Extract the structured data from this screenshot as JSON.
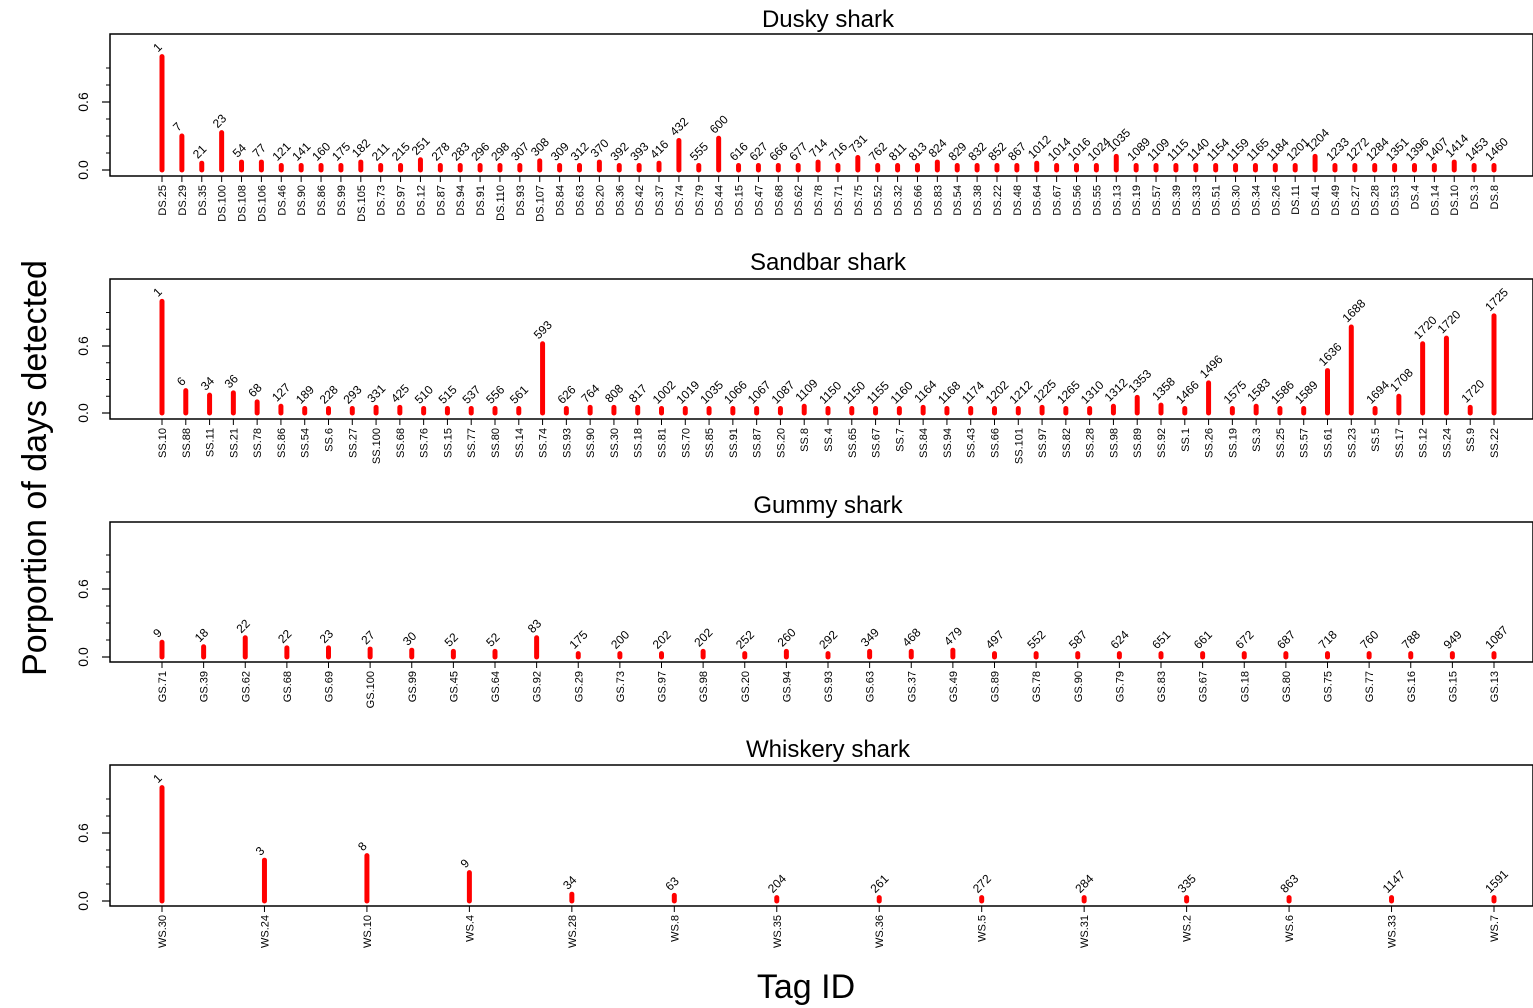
{
  "figure": {
    "ylabel": "Porportion of days detected",
    "xlabel": "Tag ID"
  },
  "chart_data": [
    {
      "type": "bar",
      "title": "Dusky shark",
      "xlabel": "",
      "ylabel": "",
      "ylim": [
        0,
        1
      ],
      "yticks": [
        0.0,
        0.6
      ],
      "ytick_labels": [
        "0.0",
        "0.6"
      ],
      "bar_color": "#ff0000",
      "categories": [
        "DS.25",
        "DS.29",
        "DS.35",
        "DS.100",
        "DS.108",
        "DS.106",
        "DS.46",
        "DS.90",
        "DS.86",
        "DS.99",
        "DS.105",
        "DS.73",
        "DS.97",
        "DS.12",
        "DS.87",
        "DS.94",
        "DS.91",
        "DS.110",
        "DS.93",
        "DS.107",
        "DS.84",
        "DS.63",
        "DS.20",
        "DS.36",
        "DS.42",
        "DS.37",
        "DS.74",
        "DS.79",
        "DS.44",
        "DS.15",
        "DS.47",
        "DS.68",
        "DS.62",
        "DS.78",
        "DS.71",
        "DS.75",
        "DS.52",
        "DS.32",
        "DS.66",
        "DS.83",
        "DS.54",
        "DS.38",
        "DS.22",
        "DS.48",
        "DS.64",
        "DS.67",
        "DS.56",
        "DS.55",
        "DS.13",
        "DS.19",
        "DS.57",
        "DS.39",
        "DS.33",
        "DS.51",
        "DS.30",
        "DS.34",
        "DS.26",
        "DS.11",
        "DS.41",
        "DS.49",
        "DS.27",
        "DS.28",
        "DS.53",
        "DS.4",
        "DS.14",
        "DS.10",
        "DS.3",
        "DS.8"
      ],
      "values": [
        1.0,
        0.3,
        0.06,
        0.33,
        0.07,
        0.07,
        0.04,
        0.04,
        0.04,
        0.04,
        0.07,
        0.04,
        0.04,
        0.09,
        0.04,
        0.04,
        0.04,
        0.04,
        0.04,
        0.08,
        0.04,
        0.04,
        0.07,
        0.04,
        0.04,
        0.06,
        0.26,
        0.04,
        0.28,
        0.04,
        0.04,
        0.04,
        0.04,
        0.07,
        0.04,
        0.11,
        0.04,
        0.04,
        0.04,
        0.07,
        0.04,
        0.04,
        0.04,
        0.04,
        0.06,
        0.04,
        0.04,
        0.04,
        0.12,
        0.04,
        0.04,
        0.04,
        0.04,
        0.04,
        0.04,
        0.04,
        0.04,
        0.04,
        0.12,
        0.04,
        0.04,
        0.04,
        0.04,
        0.04,
        0.04,
        0.07,
        0.04,
        0.04
      ],
      "value_labels": [
        "1",
        "7",
        "21",
        "23",
        "54",
        "77",
        "121",
        "141",
        "160",
        "175",
        "182",
        "211",
        "215",
        "251",
        "278",
        "283",
        "296",
        "298",
        "307",
        "308",
        "309",
        "312",
        "370",
        "392",
        "393",
        "416",
        "432",
        "555",
        "600",
        "616",
        "627",
        "666",
        "677",
        "714",
        "716",
        "731",
        "762",
        "811",
        "813",
        "824",
        "829",
        "832",
        "852",
        "867",
        "1012",
        "1014",
        "1016",
        "1024",
        "1035",
        "1089",
        "1109",
        "1115",
        "1140",
        "1154",
        "1159",
        "1165",
        "1184",
        "1201",
        "1204",
        "1233",
        "1272",
        "1284",
        "1351",
        "1396",
        "1407",
        "1414",
        "1453",
        "1460"
      ]
    },
    {
      "type": "bar",
      "title": "Sandbar shark",
      "xlabel": "",
      "ylabel": "",
      "ylim": [
        0,
        1
      ],
      "yticks": [
        0.0,
        0.6
      ],
      "ytick_labels": [
        "0.0",
        "0.6"
      ],
      "bar_color": "#ff0000",
      "categories": [
        "SS.10",
        "SS.88",
        "SS.11",
        "SS.21",
        "SS.78",
        "SS.86",
        "SS.54",
        "SS.6",
        "SS.27",
        "SS.100",
        "SS.68",
        "SS.76",
        "SS.15",
        "SS.77",
        "SS.80",
        "SS.14",
        "SS.74",
        "SS.93",
        "SS.90",
        "SS.30",
        "SS.18",
        "SS.81",
        "SS.70",
        "SS.85",
        "SS.91",
        "SS.87",
        "SS.20",
        "SS.8",
        "SS.4",
        "SS.65",
        "SS.67",
        "SS.7",
        "SS.84",
        "SS.94",
        "SS.43",
        "SS.66",
        "SS.101",
        "SS.97",
        "SS.82",
        "SS.28",
        "SS.98",
        "SS.89",
        "SS.92",
        "SS.1",
        "SS.26",
        "SS.19",
        "SS.3",
        "SS.25",
        "SS.57",
        "SS.61",
        "SS.23",
        "SS.5",
        "SS.17",
        "SS.12",
        "SS.24",
        "SS.9",
        "SS.22"
      ],
      "values": [
        1.0,
        0.2,
        0.16,
        0.18,
        0.1,
        0.06,
        0.04,
        0.04,
        0.04,
        0.05,
        0.05,
        0.04,
        0.04,
        0.04,
        0.04,
        0.04,
        0.62,
        0.04,
        0.05,
        0.05,
        0.05,
        0.04,
        0.04,
        0.04,
        0.04,
        0.04,
        0.04,
        0.06,
        0.04,
        0.04,
        0.04,
        0.04,
        0.05,
        0.04,
        0.04,
        0.04,
        0.04,
        0.05,
        0.04,
        0.04,
        0.06,
        0.14,
        0.07,
        0.04,
        0.27,
        0.04,
        0.06,
        0.04,
        0.04,
        0.38,
        0.77,
        0.04,
        0.15,
        0.62,
        0.67,
        0.05,
        0.87
      ],
      "value_labels": [
        "1",
        "6",
        "34",
        "36",
        "68",
        "127",
        "189",
        "228",
        "293",
        "331",
        "425",
        "510",
        "515",
        "537",
        "556",
        "561",
        "593",
        "626",
        "764",
        "808",
        "817",
        "1002",
        "1019",
        "1035",
        "1066",
        "1067",
        "1087",
        "1109",
        "1150",
        "1150",
        "1155",
        "1160",
        "1164",
        "1168",
        "1174",
        "1202",
        "1212",
        "1225",
        "1265",
        "1310",
        "1312",
        "1353",
        "1358",
        "1466",
        "1496",
        "1575",
        "1583",
        "1586",
        "1589",
        "1636",
        "1688",
        "1694",
        "1708",
        "1720",
        "1720",
        "1720",
        "1725"
      ]
    },
    {
      "type": "bar",
      "title": "Gummy shark",
      "xlabel": "",
      "ylabel": "",
      "ylim": [
        0,
        1
      ],
      "yticks": [
        0.0,
        0.6
      ],
      "ytick_labels": [
        "0.0",
        "0.6"
      ],
      "bar_color": "#ff0000",
      "categories": [
        "GS.71",
        "GS.39",
        "GS.62",
        "GS.68",
        "GS.69",
        "GS.100",
        "GS.99",
        "GS.45",
        "GS.64",
        "GS.92",
        "GS.29",
        "GS.73",
        "GS.97",
        "GS.98",
        "GS.20",
        "GS.94",
        "GS.93",
        "GS.63",
        "GS.37",
        "GS.49",
        "GS.89",
        "GS.78",
        "GS.90",
        "GS.79",
        "GS.83",
        "GS.67",
        "GS.18",
        "GS.80",
        "GS.75",
        "GS.77",
        "GS.16",
        "GS.15",
        "GS.13"
      ],
      "values": [
        0.13,
        0.09,
        0.17,
        0.08,
        0.08,
        0.07,
        0.06,
        0.05,
        0.05,
        0.17,
        0.03,
        0.03,
        0.03,
        0.05,
        0.03,
        0.05,
        0.03,
        0.05,
        0.05,
        0.06,
        0.03,
        0.03,
        0.03,
        0.03,
        0.03,
        0.03,
        0.03,
        0.03,
        0.03,
        0.03,
        0.03,
        0.03,
        0.03
      ],
      "value_labels": [
        "9",
        "18",
        "22",
        "22",
        "23",
        "27",
        "30",
        "52",
        "52",
        "83",
        "175",
        "200",
        "202",
        "202",
        "252",
        "260",
        "292",
        "349",
        "468",
        "479",
        "497",
        "552",
        "587",
        "624",
        "651",
        "661",
        "672",
        "687",
        "718",
        "760",
        "788",
        "949",
        "1087"
      ]
    },
    {
      "type": "bar",
      "title": "Whiskery shark",
      "xlabel": "",
      "ylabel": "",
      "ylim": [
        0,
        1
      ],
      "yticks": [
        0.0,
        0.6
      ],
      "ytick_labels": [
        "0.0",
        "0.6"
      ],
      "bar_color": "#ff0000",
      "categories": [
        "WS.30",
        "WS.24",
        "WS.10",
        "WS.4",
        "WS.28",
        "WS.8",
        "WS.35",
        "WS.36",
        "WS.5",
        "WS.31",
        "WS.2",
        "WS.6",
        "WS.33",
        "WS.7"
      ],
      "values": [
        1.0,
        0.36,
        0.4,
        0.25,
        0.06,
        0.05,
        0.03,
        0.03,
        0.03,
        0.03,
        0.03,
        0.03,
        0.03,
        0.03
      ],
      "value_labels": [
        "1",
        "3",
        "8",
        "9",
        "34",
        "63",
        "204",
        "261",
        "272",
        "284",
        "335",
        "863",
        "1147",
        "1591"
      ]
    }
  ]
}
